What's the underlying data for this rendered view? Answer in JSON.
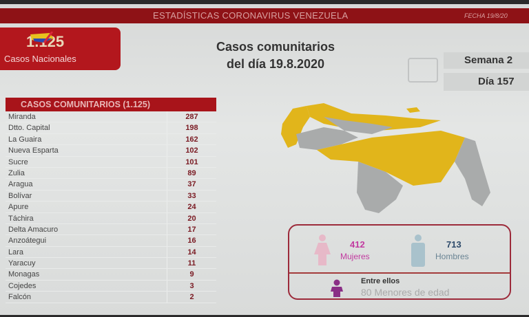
{
  "header": {
    "title": "ESTADÍSTICAS CORONAVIRUS VENEZUELA",
    "date": "FECHA 19/8/20"
  },
  "logo": {
    "number": "1.125",
    "label": "Casos Nacionales"
  },
  "main_title": {
    "line1": "Casos comunitarios",
    "line2": "del día 19.8.2020"
  },
  "calendar": {
    "icon": "calendar-icon",
    "week": "Semana 2",
    "day": "Día 157"
  },
  "table": {
    "header": "CASOS COMUNITARIOS (1.125)",
    "rows": [
      {
        "name": "Miranda",
        "value": "287"
      },
      {
        "name": "Dtto. Capital",
        "value": "198"
      },
      {
        "name": "La Guaira",
        "value": "162"
      },
      {
        "name": "Nueva Esparta",
        "value": "102"
      },
      {
        "name": "Sucre",
        "value": "101"
      },
      {
        "name": "Zulia",
        "value": "89"
      },
      {
        "name": "Aragua",
        "value": "37"
      },
      {
        "name": "Bolívar",
        "value": "33"
      },
      {
        "name": "Apure",
        "value": "24"
      },
      {
        "name": "Táchira",
        "value": "20"
      },
      {
        "name": "Delta Amacuro",
        "value": "17"
      },
      {
        "name": "Anzoátegui",
        "value": "16"
      },
      {
        "name": "Lara",
        "value": "14"
      },
      {
        "name": "Yaracuy",
        "value": "11"
      },
      {
        "name": "Monagas",
        "value": "9"
      },
      {
        "name": "Cojedes",
        "value": "3"
      },
      {
        "name": "Falcón",
        "value": "2"
      }
    ]
  },
  "map": {
    "affected_color": "#e1b51b",
    "unaffected_color": "#a9abab"
  },
  "gender": {
    "women": {
      "value": "412",
      "label": "Mujeres",
      "color": "#c23aa0"
    },
    "men": {
      "value": "713",
      "label": "Hombres",
      "color": "#2d4a6a"
    },
    "minors": {
      "line1": "Entre ellos",
      "line2": "80 Menores de edad"
    }
  }
}
